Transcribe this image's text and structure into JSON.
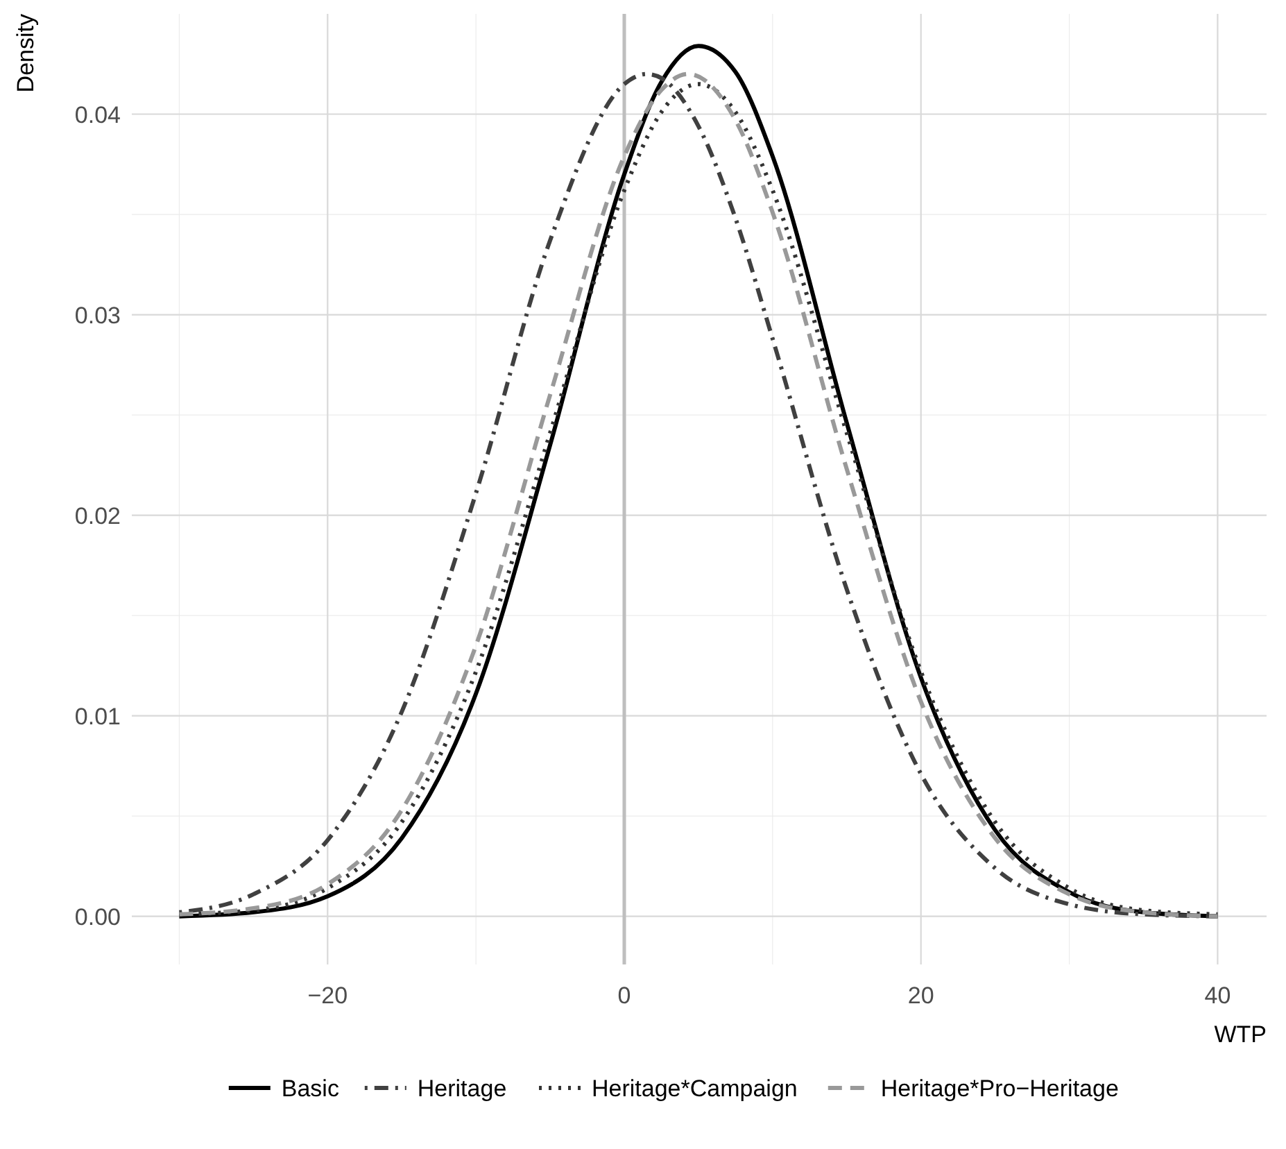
{
  "chart_data": {
    "type": "line",
    "xlabel": "WTP",
    "ylabel": "Density",
    "xlim": [
      -33.2,
      43.3
    ],
    "ylim": [
      -0.0024,
      0.045
    ],
    "xticks": [
      -20,
      0,
      20,
      40
    ],
    "yticks": [
      {
        "value": 0,
        "label": "0.00"
      },
      {
        "value": 0.01,
        "label": "0.01"
      },
      {
        "value": 0.02,
        "label": "0.02"
      },
      {
        "value": 0.03,
        "label": "0.03"
      },
      {
        "value": 0.04,
        "label": "0.04"
      }
    ],
    "grid": true,
    "legend": "bottom",
    "ref_lines": [
      {
        "axis": "x",
        "value": 0,
        "color": "#bebebe"
      }
    ],
    "series": [
      {
        "name": "Basic",
        "color": "#000000",
        "line_style": "solid",
        "x": [
          -30,
          -25,
          -20,
          -15,
          -10,
          -5,
          0,
          2.5,
          5,
          7.5,
          10,
          15,
          20,
          25,
          30,
          35,
          40
        ],
        "values": [
          0,
          0.0002,
          0.001,
          0.0039,
          0.0111,
          0.0235,
          0.037,
          0.0416,
          0.0434,
          0.0421,
          0.0379,
          0.0246,
          0.0119,
          0.0043,
          0.0012,
          0.0002,
          0
        ]
      },
      {
        "name": "Heritage",
        "color": "#404040",
        "line_style": "dashdot",
        "x": [
          -30,
          -25,
          -20,
          -15,
          -10,
          -5,
          0,
          1.5,
          2.5,
          5,
          7.5,
          10,
          15,
          20,
          25,
          30,
          35,
          40
        ],
        "values": [
          0.0002,
          0.0011,
          0.0038,
          0.0102,
          0.0211,
          0.0337,
          0.0415,
          0.042,
          0.0418,
          0.0394,
          0.0348,
          0.0288,
          0.0163,
          0.0071,
          0.0024,
          0.0006,
          0.0001,
          0
        ]
      },
      {
        "name": "Heritage*Campaign",
        "color": "#333333",
        "line_style": "dotted",
        "x": [
          -30,
          -25,
          -20,
          -15,
          -10,
          -5,
          0,
          2.5,
          5,
          7.5,
          10,
          15,
          20,
          25,
          30,
          35,
          40
        ],
        "values": [
          0.0001,
          0.0003,
          0.0014,
          0.0047,
          0.0122,
          0.0241,
          0.0362,
          0.0401,
          0.0415,
          0.0401,
          0.0362,
          0.0241,
          0.0122,
          0.0047,
          0.0014,
          0.0003,
          0.0001
        ]
      },
      {
        "name": "Heritage*Pro−Heritage",
        "color": "#999999",
        "line_style": "dashed",
        "x": [
          -30,
          -25,
          -20,
          -15,
          -10,
          -5,
          0,
          2.5,
          4.3,
          7.5,
          10,
          15,
          20,
          25,
          30,
          35,
          40
        ],
        "values": [
          0.0001,
          0.0004,
          0.0016,
          0.0053,
          0.0135,
          0.026,
          0.0379,
          0.0412,
          0.042,
          0.0397,
          0.0351,
          0.0223,
          0.0107,
          0.0039,
          0.0011,
          0.0002,
          0
        ]
      }
    ]
  }
}
